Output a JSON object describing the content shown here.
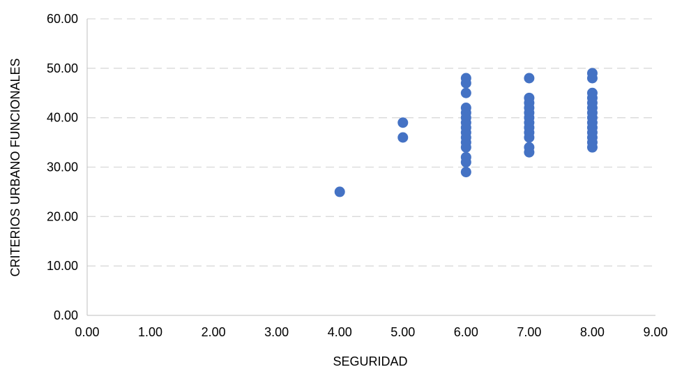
{
  "chart_data": {
    "type": "scatter",
    "xlabel": "SEGURIDAD",
    "ylabel": "CRITERIOS URBANO FUNCIONALES",
    "xlim": [
      0,
      9
    ],
    "ylim": [
      0,
      60
    ],
    "x_ticks": [
      "0.00",
      "1.00",
      "2.00",
      "3.00",
      "4.00",
      "5.00",
      "6.00",
      "7.00",
      "8.00",
      "9.00"
    ],
    "y_ticks": [
      "0.00",
      "10.00",
      "20.00",
      "30.00",
      "40.00",
      "50.00",
      "60.00"
    ],
    "grid": "horizontal dashed",
    "marker_color": "#4472C4",
    "grid_color": "#D9D9D9",
    "axis_color": "#BFBFBF",
    "series": [
      {
        "points": [
          {
            "x": 4,
            "y": 25
          },
          {
            "x": 5,
            "y": 39
          },
          {
            "x": 5,
            "y": 36
          },
          {
            "x": 6,
            "y": 48
          },
          {
            "x": 6,
            "y": 47
          },
          {
            "x": 6,
            "y": 45
          },
          {
            "x": 6,
            "y": 42
          },
          {
            "x": 6,
            "y": 41
          },
          {
            "x": 6,
            "y": 40
          },
          {
            "x": 6,
            "y": 39
          },
          {
            "x": 6,
            "y": 38
          },
          {
            "x": 6,
            "y": 37
          },
          {
            "x": 6,
            "y": 36
          },
          {
            "x": 6,
            "y": 35
          },
          {
            "x": 6,
            "y": 34
          },
          {
            "x": 6,
            "y": 32
          },
          {
            "x": 6,
            "y": 31
          },
          {
            "x": 6,
            "y": 29
          },
          {
            "x": 7,
            "y": 48
          },
          {
            "x": 7,
            "y": 44
          },
          {
            "x": 7,
            "y": 43
          },
          {
            "x": 7,
            "y": 42
          },
          {
            "x": 7,
            "y": 41
          },
          {
            "x": 7,
            "y": 40
          },
          {
            "x": 7,
            "y": 39
          },
          {
            "x": 7,
            "y": 38
          },
          {
            "x": 7,
            "y": 37
          },
          {
            "x": 7,
            "y": 36
          },
          {
            "x": 7,
            "y": 34
          },
          {
            "x": 7,
            "y": 33
          },
          {
            "x": 8,
            "y": 49
          },
          {
            "x": 8,
            "y": 48
          },
          {
            "x": 8,
            "y": 45
          },
          {
            "x": 8,
            "y": 44
          },
          {
            "x": 8,
            "y": 43
          },
          {
            "x": 8,
            "y": 42
          },
          {
            "x": 8,
            "y": 41
          },
          {
            "x": 8,
            "y": 40
          },
          {
            "x": 8,
            "y": 39
          },
          {
            "x": 8,
            "y": 38
          },
          {
            "x": 8,
            "y": 37
          },
          {
            "x": 8,
            "y": 36
          },
          {
            "x": 8,
            "y": 35
          },
          {
            "x": 8,
            "y": 34
          }
        ]
      }
    ]
  }
}
